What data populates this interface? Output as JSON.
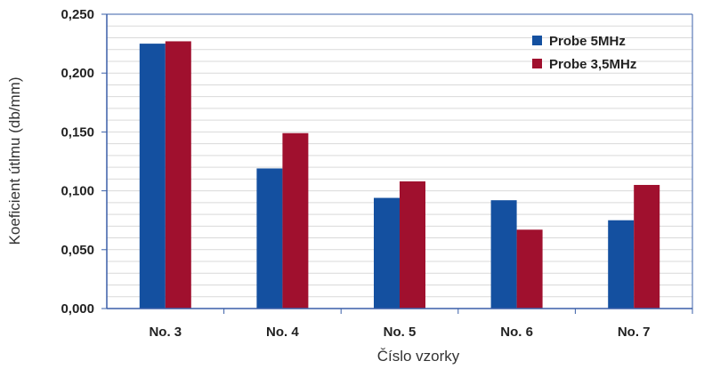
{
  "chart_data": {
    "type": "bar",
    "title": "",
    "xlabel": "Číslo vzorky",
    "ylabel": "Koeficient útlmu (db/mm)",
    "categories": [
      "No. 3",
      "No. 4",
      "No. 5",
      "No. 6",
      "No. 7"
    ],
    "series": [
      {
        "name": "Probe 5MHz",
        "values": [
          0.225,
          0.119,
          0.094,
          0.092,
          0.075
        ],
        "color": "#1450A0"
      },
      {
        "name": "Probe 3,5MHz",
        "values": [
          0.227,
          0.149,
          0.108,
          0.067,
          0.105
        ],
        "color": "#A0102E"
      }
    ],
    "ylim": [
      0,
      0.25
    ],
    "yticks": [
      0,
      0.05,
      0.1,
      0.15,
      0.2,
      0.25
    ],
    "ytick_labels": [
      "0,000",
      "0,050",
      "0,100",
      "0,150",
      "0,200",
      "0,250"
    ],
    "grid": true,
    "legend_position": "top-right",
    "colors": {
      "axis": "#3a5fa8",
      "grid": "#d9d9d9",
      "plot_background": "#ffffff"
    }
  }
}
